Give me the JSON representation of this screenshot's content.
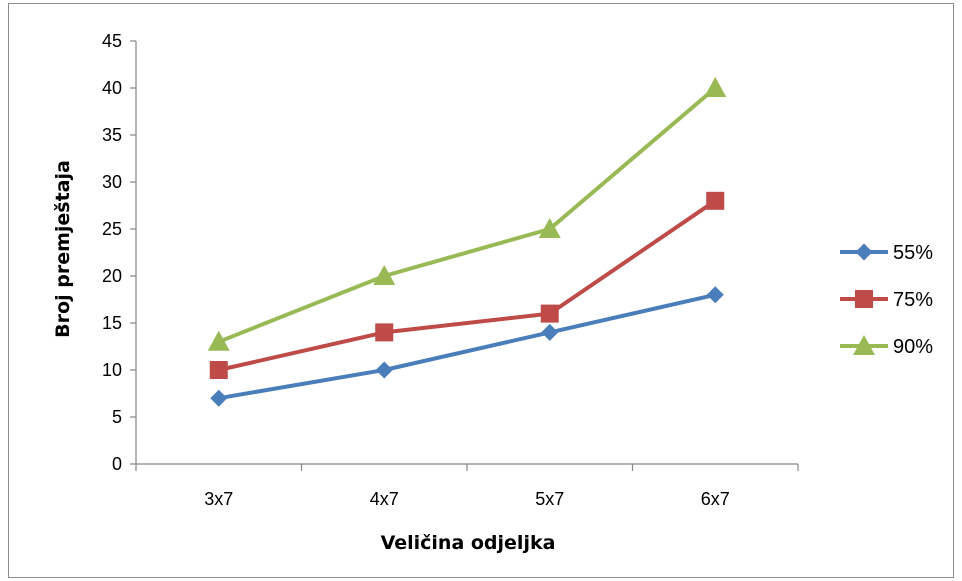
{
  "chart_data": {
    "type": "line",
    "categories": [
      "3x7",
      "4x7",
      "5x7",
      "6x7"
    ],
    "series": [
      {
        "name": "55%",
        "values": [
          7,
          10,
          14,
          18
        ],
        "color": "#4a7ebb",
        "marker": "diamond"
      },
      {
        "name": "75%",
        "values": [
          10,
          14,
          16,
          28
        ],
        "color": "#be4b48",
        "marker": "square"
      },
      {
        "name": "90%",
        "values": [
          13,
          20,
          25,
          40
        ],
        "color": "#98b954",
        "marker": "triangle"
      }
    ],
    "xlabel": "Veličina odjeljka",
    "ylabel": "Broj premještaja",
    "ylim": [
      0,
      45
    ],
    "yticks": [
      0,
      5,
      10,
      15,
      20,
      25,
      30,
      35,
      40,
      45
    ],
    "grid": false,
    "legend_position": "right"
  }
}
